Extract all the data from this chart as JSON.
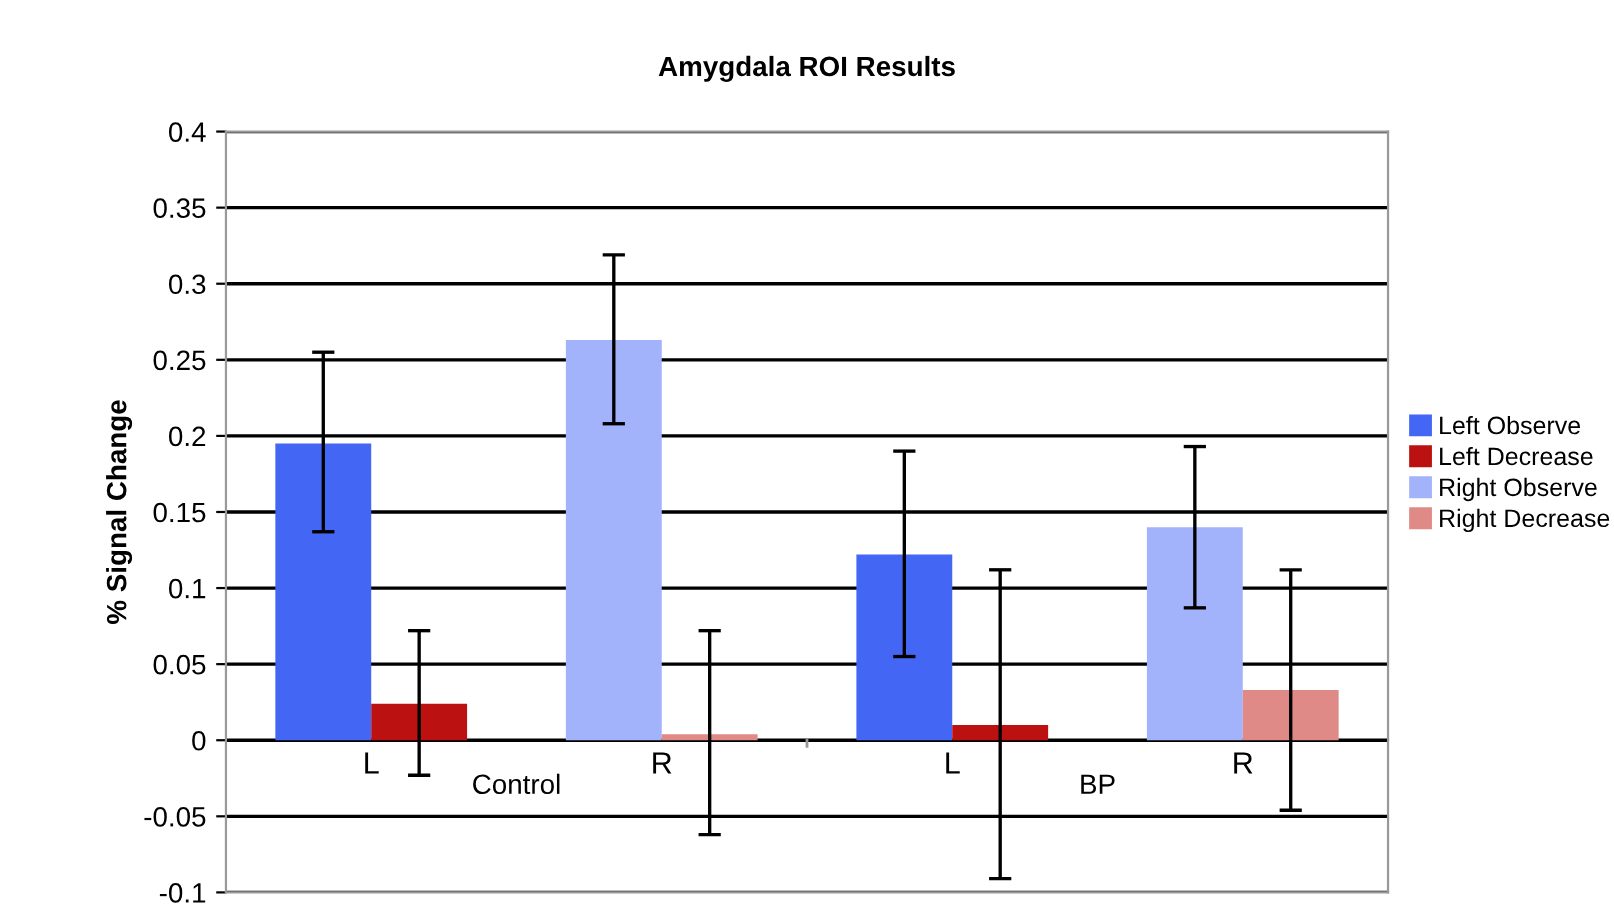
{
  "chart_data": {
    "type": "bar",
    "title": "Amygdala ROI Results",
    "ylabel": "% Signal Change",
    "categories": [
      "L",
      "R",
      "L",
      "R"
    ],
    "series": [
      {
        "name": "Left Observe",
        "color": "#4466f5",
        "values": [
          0.195,
          null,
          0.122,
          null
        ],
        "errors": [
          [
            0.137,
            0.255
          ],
          null,
          [
            0.055,
            0.19
          ],
          null
        ]
      },
      {
        "name": "Left Decrease",
        "color": "#bb1111",
        "values": [
          0.024,
          null,
          0.01,
          null
        ],
        "errors": [
          [
            -0.023,
            0.072
          ],
          null,
          [
            -0.091,
            0.112
          ],
          null
        ]
      },
      {
        "name": "Right Observe",
        "color": "#a3b3fb",
        "values": [
          null,
          0.263,
          null,
          0.14
        ],
        "errors": [
          null,
          [
            0.208,
            0.319
          ],
          null,
          [
            0.087,
            0.193
          ]
        ]
      },
      {
        "name": "Right Decrease",
        "color": "#e08a88",
        "values": [
          null,
          0.004,
          null,
          0.033
        ],
        "errors": [
          null,
          [
            -0.062,
            0.072
          ],
          null,
          [
            -0.046,
            0.112
          ]
        ]
      }
    ],
    "annotations": [
      "Control",
      "BP"
    ],
    "ylim": [
      -0.1,
      0.4
    ],
    "yticks": [
      -0.1,
      -0.05,
      0,
      0.05,
      0.1,
      0.15,
      0.2,
      0.25,
      0.3,
      0.35,
      0.4
    ],
    "grid": "y",
    "legend": "right"
  }
}
